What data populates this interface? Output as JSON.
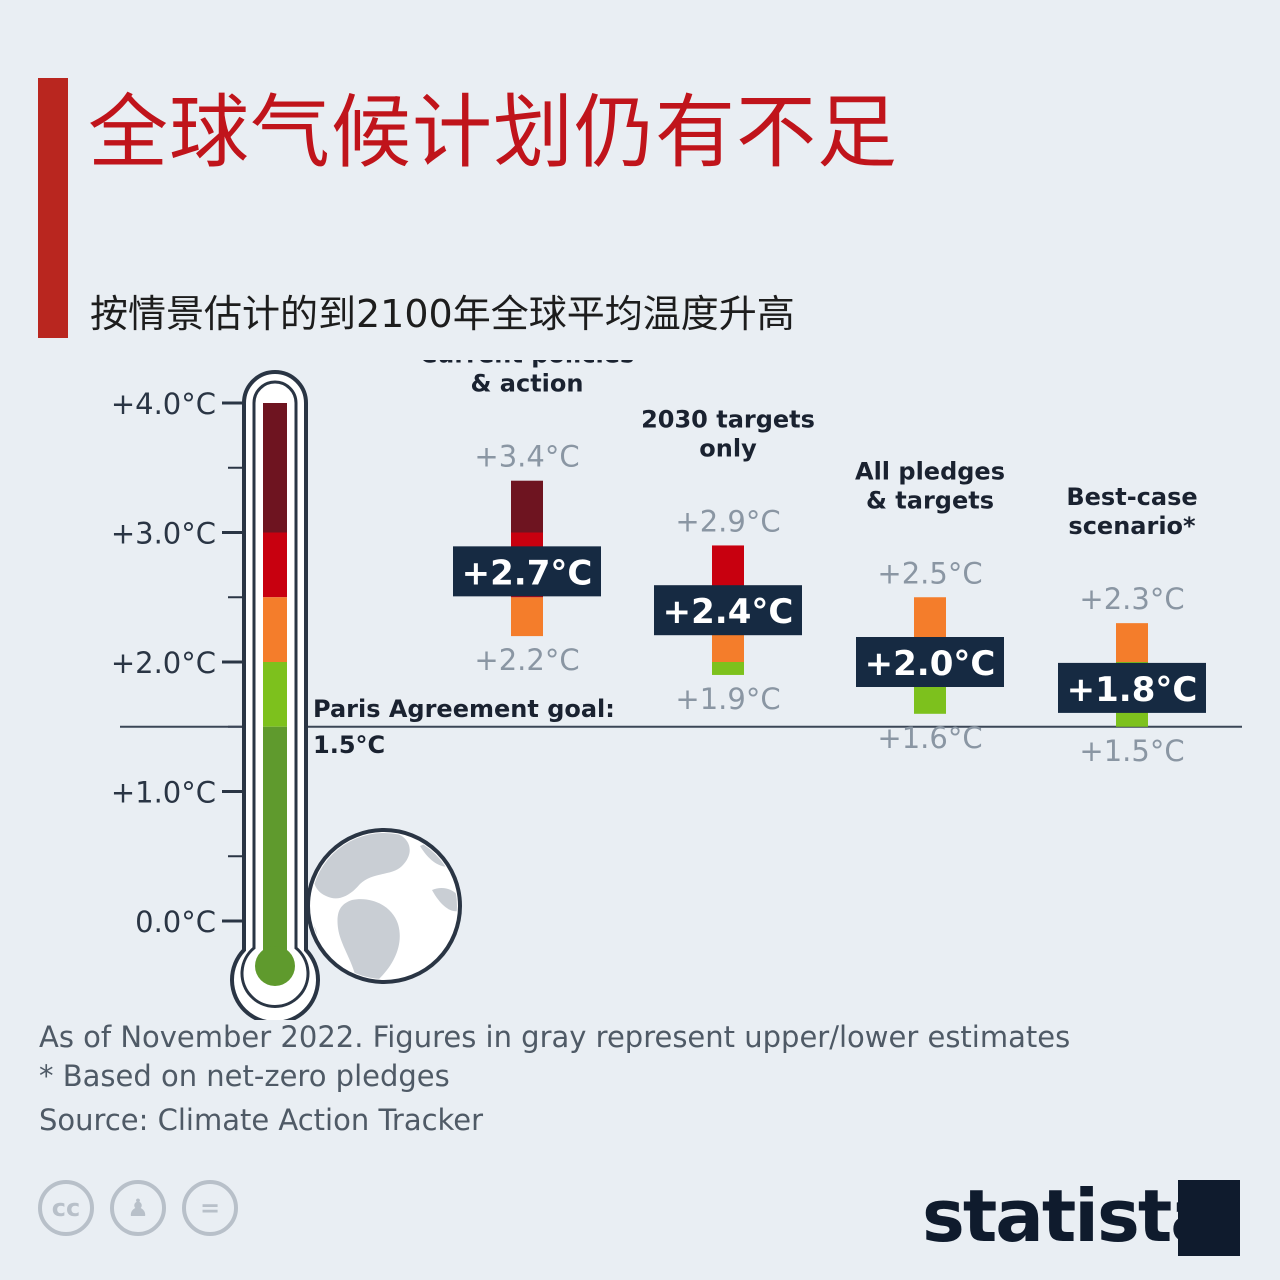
{
  "title": "全球气候计划仍有不足",
  "subtitle": "按情景估计的到2100年全球平均温度升高",
  "colors": {
    "accent": "#b9261f",
    "title": "#c0141b",
    "dark_red": "#6e1420",
    "red": "#c8000f",
    "orange": "#f47d2b",
    "light_green": "#7dc11d",
    "green": "#5f9a2d",
    "navy": "#162a42",
    "gray_label": "#8a96a3"
  },
  "chart_data": {
    "type": "bar",
    "unit": "°C",
    "y_ticks": [
      "+4.0°C",
      "+3.0°C",
      "+2.0°C",
      "+1.0°C",
      "0.0°C"
    ],
    "y_tick_values": [
      4.0,
      3.0,
      2.0,
      1.0,
      0.0
    ],
    "ylim": [
      0,
      4
    ],
    "reference": {
      "label_line1": "Paris Agreement goal:",
      "label_line2": "1.5°C",
      "value": 1.5
    },
    "scenarios": [
      {
        "name_lines": [
          "Current policies",
          "& action"
        ],
        "central": 2.7,
        "upper": 3.4,
        "lower": 2.2,
        "central_label": "+2.7°C",
        "upper_label": "+3.4°C",
        "lower_label": "+2.2°C"
      },
      {
        "name_lines": [
          "2030 targets",
          "only"
        ],
        "central": 2.4,
        "upper": 2.9,
        "lower": 1.9,
        "central_label": "+2.4°C",
        "upper_label": "+2.9°C",
        "lower_label": "+1.9°C"
      },
      {
        "name_lines": [
          "All pledges",
          "& targets"
        ],
        "central": 2.0,
        "upper": 2.5,
        "lower": 1.6,
        "central_label": "+2.0°C",
        "upper_label": "+2.5°C",
        "lower_label": "+1.6°C"
      },
      {
        "name_lines": [
          "Best-case",
          "scenario*"
        ],
        "central": 1.8,
        "upper": 2.3,
        "lower": 1.5,
        "central_label": "+1.8°C",
        "upper_label": "+2.3°C",
        "lower_label": "+1.5°C"
      }
    ],
    "color_bands": [
      {
        "from": 3.0,
        "to": 4.0,
        "color": "#6e1420"
      },
      {
        "from": 2.5,
        "to": 3.0,
        "color": "#c8000f"
      },
      {
        "from": 2.0,
        "to": 2.5,
        "color": "#f47d2b"
      },
      {
        "from": 1.5,
        "to": 2.0,
        "color": "#7dc11d"
      },
      {
        "from": 0.0,
        "to": 1.5,
        "color": "#5f9a2d"
      }
    ]
  },
  "footer": {
    "note": "As of November 2022. Figures in gray represent upper/lower estimates",
    "footnote": "* Based on net-zero pledges",
    "source": "Source: Climate Action Tracker"
  },
  "license_icons": [
    "cc",
    "by",
    "nd"
  ],
  "license_icon_names": [
    "cc-license-icon",
    "attribution-icon",
    "no-derivatives-icon"
  ],
  "logo": "statista"
}
